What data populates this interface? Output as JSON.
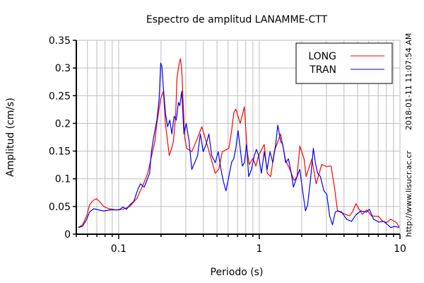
{
  "chart_data": {
    "type": "line",
    "title": "Espectro de amplitud LANAMME-CTT",
    "xlabel": "Periodo (s)",
    "ylabel": "Amplitud (cm/s)",
    "xscale": "log",
    "xlim": [
      0.05,
      10
    ],
    "ylim": [
      0,
      0.35
    ],
    "xticks": [
      0.1,
      1,
      10
    ],
    "xtick_labels": [
      "0.1",
      "1",
      "10"
    ],
    "yticks": [
      0,
      0.05,
      0.1,
      0.15,
      0.2,
      0.25,
      0.3,
      0.35
    ],
    "ytick_labels": [
      "0",
      "0.05",
      "0.1",
      "0.15",
      "0.2",
      "0.25",
      "0.3",
      "0.35"
    ],
    "grid": true,
    "legend_position": "top-right",
    "side_texts": [
      "2018-01-11 11:07:54 AM",
      "http://www.lisucr.ac.cr"
    ],
    "series": [
      {
        "name": "LONG",
        "color": "#ff0000",
        "x": [
          0.0515,
          0.0553,
          0.0593,
          0.0621,
          0.0666,
          0.0697,
          0.0731,
          0.0783,
          0.085,
          0.0955,
          0.107,
          0.12,
          0.135,
          0.152,
          0.161,
          0.171,
          0.181,
          0.187,
          0.199,
          0.208,
          0.215,
          0.229,
          0.237,
          0.245,
          0.254,
          0.26,
          0.269,
          0.275,
          0.281,
          0.288,
          0.295,
          0.305,
          0.331,
          0.355,
          0.39,
          0.433,
          0.486,
          0.515,
          0.546,
          0.607,
          0.636,
          0.658,
          0.681,
          0.731,
          0.783,
          0.82,
          0.85,
          0.901,
          0.944,
          0.989,
          1.084,
          1.137,
          1.205,
          1.276,
          1.418,
          1.538,
          1.649,
          1.767,
          1.853,
          1.941,
          2.08,
          2.153,
          2.365,
          2.535,
          2.78,
          3.018,
          3.236,
          3.428,
          3.594,
          4.084,
          4.378,
          4.588,
          4.862,
          5.095,
          5.4,
          5.79,
          6.281,
          7.051,
          7.477,
          8.017,
          8.596,
          9.441,
          9.9
        ],
        "y": [
          0.012,
          0.017,
          0.033,
          0.053,
          0.062,
          0.064,
          0.059,
          0.05,
          0.046,
          0.044,
          0.045,
          0.05,
          0.065,
          0.094,
          0.11,
          0.14,
          0.168,
          0.2,
          0.245,
          0.258,
          0.2,
          0.142,
          0.153,
          0.168,
          0.213,
          0.283,
          0.308,
          0.317,
          0.296,
          0.232,
          0.174,
          0.155,
          0.149,
          0.167,
          0.194,
          0.155,
          0.11,
          0.117,
          0.149,
          0.155,
          0.187,
          0.219,
          0.226,
          0.2,
          0.23,
          0.149,
          0.126,
          0.137,
          0.123,
          0.142,
          0.162,
          0.11,
          0.104,
          0.149,
          0.181,
          0.133,
          0.117,
          0.097,
          0.104,
          0.159,
          0.136,
          0.104,
          0.136,
          0.091,
          0.126,
          0.122,
          0.123,
          0.083,
          0.042,
          0.036,
          0.033,
          0.04,
          0.055,
          0.046,
          0.036,
          0.044,
          0.033,
          0.032,
          0.024,
          0.021,
          0.027,
          0.021,
          0.013
        ]
      },
      {
        "name": "TRAN",
        "color": "#0000ff",
        "x": [
          0.0515,
          0.0553,
          0.0593,
          0.0621,
          0.0666,
          0.0714,
          0.0783,
          0.0881,
          0.101,
          0.107,
          0.114,
          0.12,
          0.128,
          0.137,
          0.143,
          0.152,
          0.157,
          0.166,
          0.171,
          0.177,
          0.181,
          0.187,
          0.194,
          0.199,
          0.203,
          0.208,
          0.215,
          0.223,
          0.231,
          0.239,
          0.248,
          0.257,
          0.266,
          0.272,
          0.281,
          0.291,
          0.302,
          0.317,
          0.331,
          0.347,
          0.364,
          0.381,
          0.399,
          0.418,
          0.438,
          0.459,
          0.486,
          0.51,
          0.534,
          0.553,
          0.579,
          0.607,
          0.636,
          0.658,
          0.681,
          0.706,
          0.731,
          0.757,
          0.783,
          0.811,
          0.84,
          0.88,
          0.922,
          0.954,
          0.989,
          1.035,
          1.084,
          1.137,
          1.191,
          1.247,
          1.307,
          1.353,
          1.418,
          1.468,
          1.538,
          1.611,
          1.687,
          1.747,
          1.853,
          1.941,
          2.033,
          2.129,
          2.205,
          2.31,
          2.42,
          2.505,
          2.594,
          2.718,
          2.88,
          3.018,
          3.162,
          3.312,
          3.47,
          3.636,
          3.852,
          4.174,
          4.524,
          4.862,
          5.276,
          5.79,
          6.063,
          6.497,
          7.051,
          7.646,
          8.188,
          8.596,
          9.216,
          9.9
        ],
        "y": [
          0.012,
          0.014,
          0.027,
          0.04,
          0.046,
          0.044,
          0.042,
          0.044,
          0.044,
          0.049,
          0.045,
          0.053,
          0.059,
          0.081,
          0.091,
          0.085,
          0.094,
          0.11,
          0.149,
          0.174,
          0.187,
          0.206,
          0.244,
          0.309,
          0.303,
          0.264,
          0.219,
          0.194,
          0.206,
          0.181,
          0.213,
          0.206,
          0.238,
          0.232,
          0.258,
          0.181,
          0.2,
          0.168,
          0.117,
          0.129,
          0.142,
          0.181,
          0.149,
          0.162,
          0.181,
          0.142,
          0.129,
          0.149,
          0.117,
          0.097,
          0.078,
          0.104,
          0.13,
          0.136,
          0.155,
          0.187,
          0.155,
          0.123,
          0.129,
          0.162,
          0.104,
          0.117,
          0.142,
          0.153,
          0.142,
          0.11,
          0.149,
          0.117,
          0.149,
          0.129,
          0.162,
          0.197,
          0.168,
          0.162,
          0.129,
          0.136,
          0.11,
          0.085,
          0.104,
          0.117,
          0.078,
          0.042,
          0.053,
          0.097,
          0.155,
          0.129,
          0.11,
          0.104,
          0.078,
          0.072,
          0.033,
          0.017,
          0.04,
          0.042,
          0.04,
          0.027,
          0.023,
          0.035,
          0.042,
          0.04,
          0.045,
          0.027,
          0.022,
          0.023,
          0.017,
          0.012,
          0.014,
          0.012
        ]
      }
    ]
  }
}
